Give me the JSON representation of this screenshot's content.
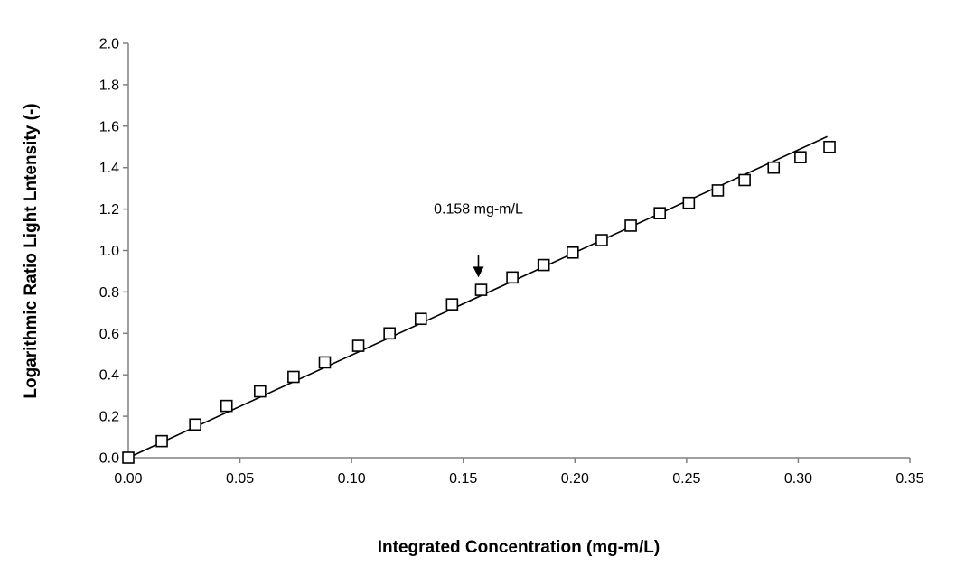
{
  "chart_data": {
    "type": "scatter",
    "title": "",
    "xlabel": "Integrated Concentration (mg-m/L)",
    "ylabel": "Logarithmic Ratio Light Lntensity (-)",
    "xlim": [
      0,
      0.35
    ],
    "ylim": [
      0,
      2.0
    ],
    "x_ticks": [
      0,
      0.05,
      0.1,
      0.15,
      0.2,
      0.25,
      0.3,
      0.35
    ],
    "x_tick_labels": [
      "0.00",
      "0.05",
      "0.10",
      "0.15",
      "0.20",
      "0.25",
      "0.30",
      "0.35"
    ],
    "y_ticks": [
      0,
      0.2,
      0.4,
      0.6,
      0.8,
      1.0,
      1.2,
      1.4,
      1.6,
      1.8,
      2.0
    ],
    "y_tick_labels": [
      "0.0",
      "0.2",
      "0.4",
      "0.6",
      "0.8",
      "1.0",
      "1.2",
      "1.4",
      "1.6",
      "1.8",
      "2.0"
    ],
    "grid": false,
    "legend": "none",
    "marker": "open-square",
    "colors": {
      "marker_stroke": "#000000",
      "marker_fill": "#ffffff",
      "line": "#000000",
      "axis": "#808080"
    },
    "series": [
      {
        "x": [
          0.0,
          0.015,
          0.03,
          0.044,
          0.059,
          0.074,
          0.088,
          0.103,
          0.117,
          0.131,
          0.145,
          0.158,
          0.172,
          0.186,
          0.199,
          0.212,
          0.225,
          0.238,
          0.251,
          0.264,
          0.276,
          0.289,
          0.301,
          0.314
        ],
        "y": [
          0.0,
          0.08,
          0.16,
          0.25,
          0.32,
          0.39,
          0.46,
          0.54,
          0.6,
          0.67,
          0.74,
          0.81,
          0.87,
          0.93,
          0.99,
          1.05,
          1.12,
          1.18,
          1.23,
          1.29,
          1.34,
          1.4,
          1.45,
          1.5
        ]
      }
    ],
    "fit_line": {
      "x": [
        0,
        0.313
      ],
      "y": [
        0,
        1.55
      ]
    },
    "annotations": [
      {
        "text": "0.158 mg-m/L",
        "x": 0.158,
        "arrow_to_y": 0.87,
        "arrow_from_y": 0.98,
        "text_y": 1.2
      }
    ]
  }
}
